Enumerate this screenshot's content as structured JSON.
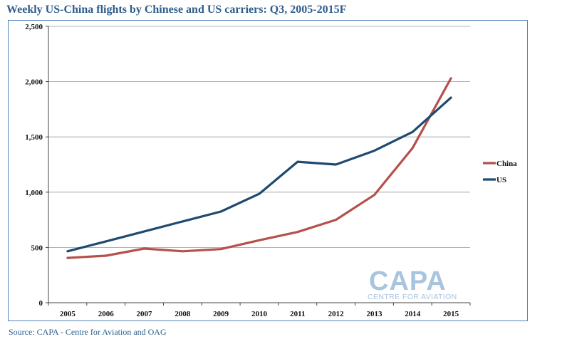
{
  "title": "Weekly US-China flights by Chinese and US carriers: Q3, 2005-2015F",
  "source": "Source: CAPA - Centre for Aviation and OAG",
  "logo": {
    "main": "CAPA",
    "sub": "CENTRE FOR AVIATION"
  },
  "chart_data": {
    "type": "line",
    "title": "Weekly US-China flights by Chinese and US carriers: Q3, 2005-2015F",
    "xlabel": "",
    "ylabel": "",
    "categories": [
      "2005",
      "2006",
      "2007",
      "2008",
      "2009",
      "2010",
      "2011",
      "2012",
      "2013",
      "2014",
      "2015"
    ],
    "ylim": [
      0,
      2500
    ],
    "yticks": [
      0,
      500,
      1000,
      1500,
      2000,
      2500
    ],
    "ytick_labels": [
      "0",
      "500",
      "1,000",
      "1,500",
      "2,000",
      "2,500"
    ],
    "grid": true,
    "legend_position": "right",
    "series": [
      {
        "name": "China",
        "color": "#b5504b",
        "values": [
          405,
          425,
          490,
          465,
          485,
          565,
          640,
          750,
          975,
          1400,
          2030
        ]
      },
      {
        "name": "US",
        "color": "#1f4a70",
        "values": [
          465,
          555,
          645,
          735,
          825,
          985,
          1275,
          1250,
          1375,
          1545,
          1855
        ]
      }
    ]
  }
}
